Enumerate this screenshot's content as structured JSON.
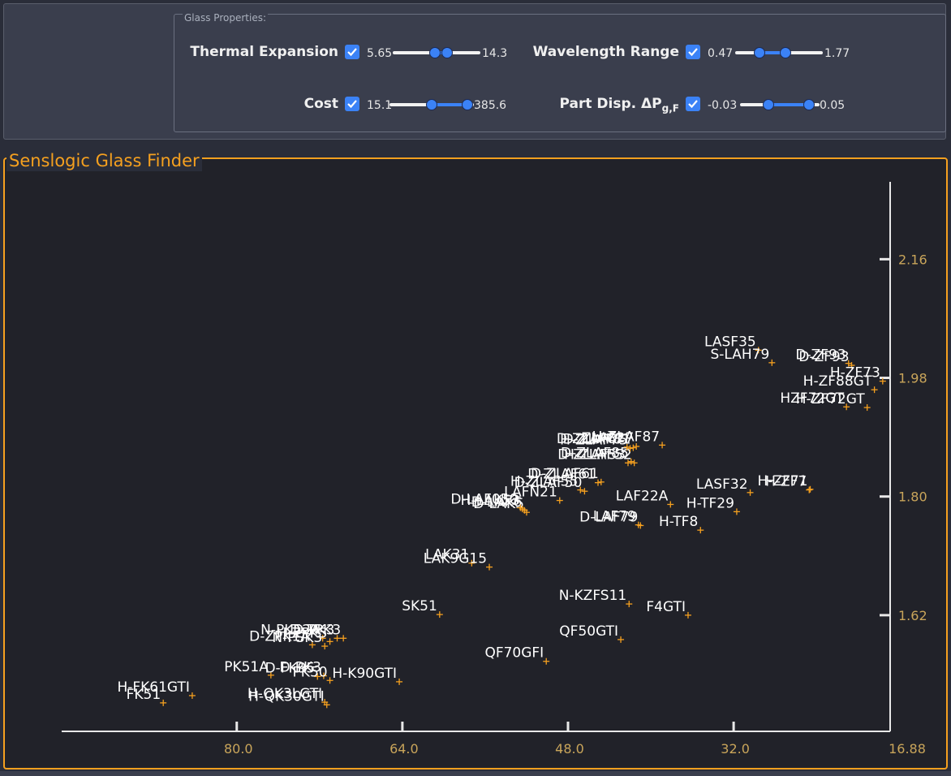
{
  "panel": {
    "legend": "Glass Properties:",
    "controls": [
      {
        "label": "Thermal Expansion",
        "checked": true,
        "min": "5.65",
        "max": "14.3",
        "low": 0.48,
        "high": 0.62
      },
      {
        "label": "Wavelength Range",
        "checked": true,
        "min": "0.47",
        "max": "1.77",
        "low": 0.28,
        "high": 0.57
      },
      {
        "label": "Cost",
        "checked": true,
        "min": "15.1",
        "max": "385.6",
        "low": 0.5,
        "high": 0.92
      },
      {
        "label": "Part Disp. ΔP",
        "label_sub": "g,F",
        "checked": true,
        "min": "-0.03",
        "max": "0.05",
        "low": 0.36,
        "high": 0.87
      }
    ]
  },
  "plot": {
    "title": "Senslogic Glass Finder"
  },
  "colors": {
    "accent": "#f5a01f",
    "check": "#3b82f6",
    "tick": "#c9a55a"
  },
  "chart_data": {
    "type": "scatter",
    "title": "Senslogic Glass Finder",
    "xlabel": "",
    "ylabel": "",
    "xlim": [
      96.6,
      16.88
    ],
    "ylim": [
      1.445,
      2.27
    ],
    "x_ticks": [
      "80.0",
      "64.0",
      "48.0",
      "32.0",
      "16.88"
    ],
    "y_ticks": [
      "2.16",
      "1.98",
      "1.80",
      "1.62"
    ],
    "points": [
      {
        "name": "H-FK61GTI",
        "x": 84.3,
        "y": 1.498
      },
      {
        "name": "FK51",
        "x": 87.1,
        "y": 1.487
      },
      {
        "name": "PK51A",
        "x": 76.7,
        "y": 1.529
      },
      {
        "name": "D-FK95",
        "x": 72.2,
        "y": 1.527
      },
      {
        "name": "D-PK3",
        "x": 71.6,
        "y": 1.528
      },
      {
        "name": "PK50",
        "x": 71.0,
        "y": 1.521
      },
      {
        "name": "H-K90GTI",
        "x": 64.3,
        "y": 1.519
      },
      {
        "name": "H-QK3LGTI",
        "x": 71.5,
        "y": 1.488
      },
      {
        "name": "H-QK30GTI",
        "x": 71.3,
        "y": 1.484
      },
      {
        "name": "D-ZPK3",
        "x": 69.7,
        "y": 1.585
      },
      {
        "name": "D-PK3",
        "x": 70.3,
        "y": 1.585
      },
      {
        "name": "N-PK52A",
        "x": 71.7,
        "y": 1.585
      },
      {
        "name": "H-ZPK5",
        "x": 71.0,
        "y": 1.58
      },
      {
        "name": "D-ZPK1A",
        "x": 72.7,
        "y": 1.575
      },
      {
        "name": "N-PSK3",
        "x": 71.5,
        "y": 1.573
      },
      {
        "name": "SK51",
        "x": 60.4,
        "y": 1.621
      },
      {
        "name": "LAK31",
        "x": 57.3,
        "y": 1.699
      },
      {
        "name": "LAK9G15",
        "x": 55.6,
        "y": 1.693
      },
      {
        "name": "N-KZFS11",
        "x": 42.1,
        "y": 1.637
      },
      {
        "name": "F4GTI",
        "x": 36.4,
        "y": 1.62
      },
      {
        "name": "QF50GTI",
        "x": 42.9,
        "y": 1.583
      },
      {
        "name": "QF70GFI",
        "x": 50.1,
        "y": 1.55
      },
      {
        "name": "D-LAF79",
        "x": 41.0,
        "y": 1.756
      },
      {
        "name": "LAF79",
        "x": 41.2,
        "y": 1.757
      },
      {
        "name": "H-TF8",
        "x": 35.2,
        "y": 1.749
      },
      {
        "name": "D-LAK6",
        "x": 52.2,
        "y": 1.779
      },
      {
        "name": "D-LAK5",
        "x": 52.0,
        "y": 1.776
      },
      {
        "name": "H-LAK53",
        "x": 52.4,
        "y": 1.781
      },
      {
        "name": "D-LAF050",
        "x": 52.6,
        "y": 1.783
      },
      {
        "name": "LAFN21",
        "x": 48.8,
        "y": 1.794
      },
      {
        "name": "LAF22A",
        "x": 38.1,
        "y": 1.788
      },
      {
        "name": "LASF32",
        "x": 30.4,
        "y": 1.806
      },
      {
        "name": "H-TF29",
        "x": 31.7,
        "y": 1.777
      },
      {
        "name": "H-ZF7",
        "x": 24.7,
        "y": 1.81
      },
      {
        "name": "H-ZF71",
        "x": 24.6,
        "y": 1.811
      },
      {
        "name": "D-ZLAF50",
        "x": 46.4,
        "y": 1.808
      },
      {
        "name": "H-ZLAF55",
        "x": 46.8,
        "y": 1.81
      },
      {
        "name": "D-ZLAF61",
        "x": 44.8,
        "y": 1.822
      },
      {
        "name": "D-ZLAF61",
        "x": 45.1,
        "y": 1.821
      },
      {
        "name": "D-ZLAF53",
        "x": 42.2,
        "y": 1.851
      },
      {
        "name": "D-ZLAF85",
        "x": 41.9,
        "y": 1.853
      },
      {
        "name": "H-ZLAF52",
        "x": 41.6,
        "y": 1.851
      },
      {
        "name": "H-ZLAF75",
        "x": 42.0,
        "y": 1.873
      },
      {
        "name": "D-ZLAF67",
        "x": 42.3,
        "y": 1.875
      },
      {
        "name": "ZLAF27",
        "x": 41.4,
        "y": 1.876
      },
      {
        "name": "D-ZLAF81",
        "x": 41.7,
        "y": 1.874
      },
      {
        "name": "H-ZLAF87",
        "x": 38.9,
        "y": 1.878
      },
      {
        "name": "LASF35",
        "x": 29.6,
        "y": 2.022
      },
      {
        "name": "S-LAH79",
        "x": 28.3,
        "y": 2.003
      },
      {
        "name": "D-ZF93",
        "x": 20.9,
        "y": 2.002
      },
      {
        "name": "D-ZF93",
        "x": 20.6,
        "y": 1.999
      },
      {
        "name": "H-ZF73",
        "x": 17.6,
        "y": 1.975
      },
      {
        "name": "H-ZF88GT",
        "x": 18.4,
        "y": 1.962
      },
      {
        "name": "HZF72GT",
        "x": 21.1,
        "y": 1.936
      },
      {
        "name": "H-ZF72GT",
        "x": 19.1,
        "y": 1.935
      }
    ]
  }
}
